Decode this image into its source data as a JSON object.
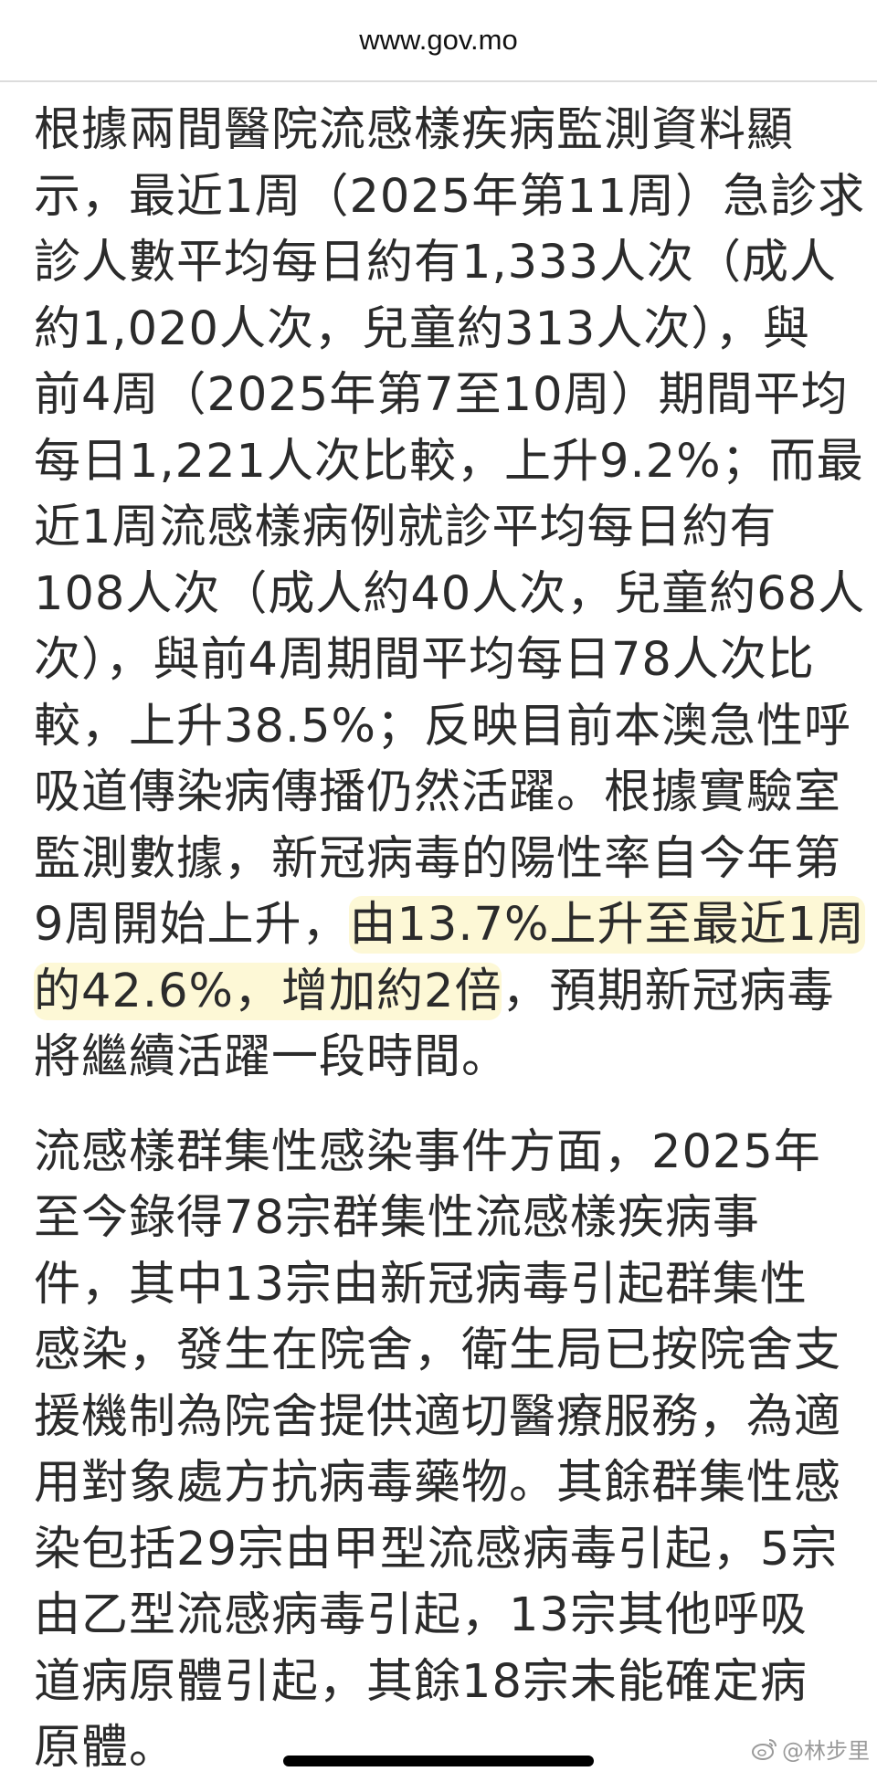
{
  "header": {
    "url": "www.gov.mo"
  },
  "highlight_color": "#fdf8d6",
  "paragraphs": [
    [
      [
        {
          "t": "根據兩間醫院流感樣疾病監測資料顯"
        }
      ],
      [
        {
          "t": "示，最近1周（2025年第11周）急診求"
        }
      ],
      [
        {
          "t": "診人數平均每日約有1,333人次（成人"
        }
      ],
      [
        {
          "t": "約1,020人次，兒童約313人次），與"
        }
      ],
      [
        {
          "t": "前4周（2025年第7至10周）期間平均"
        }
      ],
      [
        {
          "t": "每日1,221人次比較，上升9.2%；而最"
        }
      ],
      [
        {
          "t": "近1周流感樣病例就診平均每日約有"
        }
      ],
      [
        {
          "t": "108人次（成人約40人次，兒童約68人"
        }
      ],
      [
        {
          "t": "次），與前4周期間平均每日78人次比"
        }
      ],
      [
        {
          "t": "較，上升38.5%；反映目前本澳急性呼"
        }
      ],
      [
        {
          "t": "吸道傳染病傳播仍然活躍。根據實驗室"
        }
      ],
      [
        {
          "t": "監測數據，新冠病毒的陽性率自今年第"
        }
      ],
      [
        {
          "t": "9周開始上升，"
        },
        {
          "t": "由13.7%上升至最近1周",
          "hl": true
        }
      ],
      [
        {
          "t": "的42.6%，增加約2倍",
          "hl": true
        },
        {
          "t": "，預期新冠病毒"
        }
      ],
      [
        {
          "t": "將繼續活躍一段時間。"
        }
      ]
    ],
    [
      [
        {
          "t": "流感樣群集性感染事件方面，2025年"
        }
      ],
      [
        {
          "t": "至今錄得78宗群集性流感樣疾病事"
        }
      ],
      [
        {
          "t": "件，其中13宗由新冠病毒引起群集性"
        }
      ],
      [
        {
          "t": "感染，發生在院舍，衛生局已按院舍支"
        }
      ],
      [
        {
          "t": "援機制為院舍提供適切醫療服務，為適"
        }
      ],
      [
        {
          "t": "用對象處方抗病毒藥物。其餘群集性感"
        }
      ],
      [
        {
          "t": "染包括29宗由甲型流感病毒引起，5宗"
        }
      ],
      [
        {
          "t": "由乙型流感病毒引起，13宗其他呼吸"
        }
      ],
      [
        {
          "t": "道病原體引起，其餘18宗未能確定病"
        }
      ],
      [
        {
          "t": "原體。"
        }
      ]
    ]
  ],
  "watermark": {
    "icon": "weibo-icon",
    "text": "@林步里"
  }
}
